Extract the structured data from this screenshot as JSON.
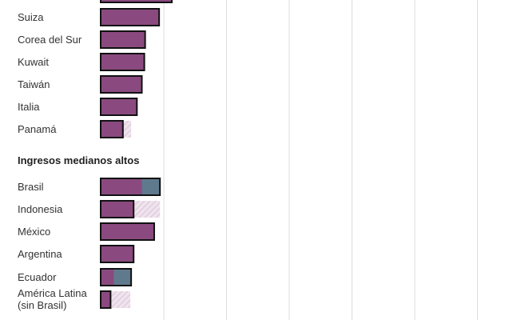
{
  "chart_data": {
    "type": "bar",
    "orientation": "horizontal",
    "stacked": true,
    "grid": true,
    "colors": {
      "main": "#8a4a7f",
      "blue": "#5f7a8c",
      "hatch": "#d9c3d6",
      "outline": "#111111",
      "grid": "#dddddd"
    },
    "groups": [
      {
        "title": "",
        "rows": [
          {
            "label": "Suiza",
            "main": 71,
            "blue": 0,
            "hatch": 0
          },
          {
            "label": "Corea del Sur",
            "main": 54,
            "blue": 0,
            "hatch": 0
          },
          {
            "label": "Kuwait",
            "main": 53,
            "blue": 0,
            "hatch": 0
          },
          {
            "label": "Taiwán",
            "main": 50,
            "blue": 0,
            "hatch": 0
          },
          {
            "label": "Italia",
            "main": 44,
            "blue": 0,
            "hatch": 0
          },
          {
            "label": "Panamá",
            "main": 27,
            "blue": 0,
            "hatch": 10
          }
        ]
      },
      {
        "title": "Ingresos medianos altos",
        "rows": [
          {
            "label": "Brasil",
            "main": 50,
            "blue": 22,
            "hatch": 0
          },
          {
            "label": "Indonesia",
            "main": 40,
            "blue": 0,
            "hatch": 32
          },
          {
            "label": "México",
            "main": 65,
            "blue": 0,
            "hatch": 0
          },
          {
            "label": "Argentina",
            "main": 40,
            "blue": 0,
            "hatch": 0
          },
          {
            "label": "Ecuador",
            "main": 16,
            "blue": 21,
            "hatch": 0
          },
          {
            "label": "América Latina\n(sin Brasil)",
            "main": 12,
            "blue": 0,
            "hatch": 24
          }
        ]
      }
    ]
  }
}
